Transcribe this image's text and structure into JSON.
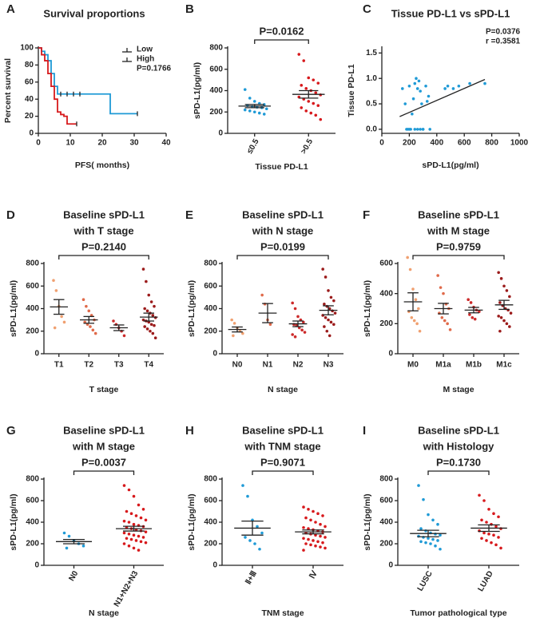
{
  "chart_data": [
    {
      "type": "survival",
      "panel": "A",
      "title": [
        "Survival proportions"
      ],
      "xlabel": "PFS( months)",
      "ylabel": "Percent survival",
      "annotation": "P=0.1766",
      "legend": "upper right",
      "xlim": [
        0,
        40
      ],
      "xticks": [
        0,
        10,
        20,
        30,
        40
      ],
      "ylim": [
        0,
        100
      ],
      "yticks": [
        0,
        20,
        40,
        60,
        80,
        100
      ],
      "series": [
        {
          "name": "Low",
          "color": "#1f9ad6",
          "x": [
            0,
            1,
            2,
            3,
            4,
            5,
            6,
            22.5,
            31
          ],
          "y": [
            100,
            96,
            92,
            85,
            70,
            55,
            46,
            23,
            23
          ],
          "censor_x": [
            7,
            9,
            11,
            13,
            31
          ],
          "censor_y": [
            46,
            46,
            46,
            46,
            23
          ]
        },
        {
          "name": "High",
          "color": "#d7191c",
          "x": [
            0,
            1,
            2,
            3,
            4,
            5,
            6,
            7,
            8,
            9,
            12
          ],
          "y": [
            100,
            92,
            85,
            70,
            55,
            40,
            25,
            22,
            20,
            11,
            11
          ],
          "censor_x": [
            12
          ],
          "censor_y": [
            11
          ]
        }
      ]
    },
    {
      "type": "dot",
      "panel": "B",
      "title": [],
      "pvalue": "P=0.0162",
      "xlabel": "Tissue PD-L1",
      "ylabel": "sPD-L1(pg/ml)",
      "ylim": [
        0,
        800
      ],
      "yticks": [
        0,
        200,
        400,
        600,
        800
      ],
      "groups": [
        {
          "name": "≤0.5",
          "color": "#1f9ad6",
          "values": [
            410,
            330,
            300,
            280,
            270,
            260,
            250,
            245,
            240,
            230,
            220,
            210,
            200,
            190,
            180
          ],
          "mean": 255,
          "sem": 15
        },
        {
          "name": ">0.5",
          "color": "#d7191c",
          "values": [
            740,
            680,
            520,
            500,
            470,
            450,
            420,
            400,
            380,
            360,
            340,
            320,
            300,
            280,
            260,
            240,
            210,
            190,
            170,
            130
          ],
          "mean": 365,
          "sem": 35
        }
      ]
    },
    {
      "type": "scatter",
      "panel": "C",
      "title": [
        "Tissue PD-L1 vs sPD-L1"
      ],
      "xlabel": "sPD-L1(pg/ml)",
      "ylabel": "Tissue PD-L1",
      "annotations": [
        "P=0.0376",
        "r =0.3581"
      ],
      "color": "#1f9ad6",
      "xlim": [
        0,
        1000
      ],
      "xticks": [
        0,
        200,
        400,
        600,
        800,
        1000
      ],
      "ylim": [
        -0.08,
        1.6
      ],
      "yticks": [
        {
          "value": 0,
          "label": "0.0"
        },
        0.5,
        {
          "value": 1,
          "label": "1.0"
        },
        1.5
      ],
      "x": [
        150,
        170,
        190,
        200,
        210,
        220,
        230,
        240,
        250,
        260,
        270,
        280,
        290,
        300,
        320,
        340,
        460,
        480,
        520,
        560,
        640,
        750,
        180,
        240,
        260,
        280,
        300,
        330,
        200,
        350
      ],
      "y": [
        0.8,
        0.5,
        0,
        0.85,
        0,
        0.3,
        0.6,
        0.9,
        1,
        0,
        0.95,
        0.75,
        0.5,
        0,
        0.85,
        0.65,
        0.8,
        0.85,
        0.8,
        0.85,
        0.9,
        0.9,
        0,
        0,
        0.8,
        0,
        0,
        0.55,
        0,
        0
      ],
      "fit": {
        "x": [
          130,
          750
        ],
        "y": [
          0.25,
          0.98
        ]
      }
    },
    {
      "type": "dot",
      "panel": "D",
      "title": [
        "Baseline sPD-L1",
        "with T stage"
      ],
      "pvalue": "P=0.2140",
      "xlabel": "T stage",
      "ylabel": "sPD-L1(pg/ml)",
      "ylim": [
        0,
        800
      ],
      "yticks": [
        0,
        200,
        400,
        600,
        800
      ],
      "groups": [
        {
          "name": "T1",
          "color": "#f0a070",
          "values": [
            650,
            560,
            420,
            330,
            280,
            230
          ],
          "mean": 415,
          "sem": 65
        },
        {
          "name": "T2",
          "color": "#e06a4a",
          "values": [
            480,
            420,
            380,
            340,
            300,
            280,
            260,
            240,
            210,
            180
          ],
          "mean": 300,
          "sem": 30
        },
        {
          "name": "T3",
          "color": "#cc2a2a",
          "values": [
            290,
            260,
            230,
            200,
            160
          ],
          "mean": 230,
          "sem": 25
        },
        {
          "name": "T4",
          "color": "#9b1b1b",
          "values": [
            750,
            640,
            520,
            460,
            420,
            400,
            380,
            360,
            340,
            320,
            300,
            290,
            280,
            260,
            250,
            240,
            220,
            200,
            180,
            140
          ],
          "mean": 325,
          "sem": 35
        }
      ]
    },
    {
      "type": "dot",
      "panel": "E",
      "title": [
        "Baseline sPD-L1",
        "with N stage"
      ],
      "pvalue": "P=0.0199",
      "xlabel": "N stage",
      "ylabel": "sPD-L1(pg/ml)",
      "ylim": [
        0,
        800
      ],
      "yticks": [
        0,
        200,
        400,
        600,
        800
      ],
      "groups": [
        {
          "name": "N0",
          "color": "#f0a070",
          "values": [
            300,
            270,
            230,
            200,
            180,
            160
          ],
          "mean": 215,
          "sem": 22
        },
        {
          "name": "N1",
          "color": "#e06a4a",
          "values": [
            520,
            440,
            300,
            260
          ],
          "mean": 360,
          "sem": 85
        },
        {
          "name": "N2",
          "color": "#cc2a2a",
          "values": [
            450,
            400,
            330,
            300,
            280,
            260,
            250,
            230,
            210,
            190,
            170,
            150
          ],
          "mean": 265,
          "sem": 25
        },
        {
          "name": "N3",
          "color": "#9b1b1b",
          "values": [
            750,
            680,
            560,
            500,
            470,
            440,
            420,
            400,
            380,
            360,
            340,
            320,
            300,
            280,
            260,
            240,
            200,
            160
          ],
          "mean": 385,
          "sem": 40
        }
      ]
    },
    {
      "type": "dot",
      "panel": "F",
      "title": [
        "Baseline sPD-L1",
        "with M stage"
      ],
      "pvalue": "P=0.9759",
      "xlabel": "M stage",
      "ylabel": "sPD-L1(pg/ml)",
      "ylim": [
        0,
        600
      ],
      "yticks": [
        0,
        200,
        400,
        600
      ],
      "groups": [
        {
          "name": "M0",
          "color": "#f0a070",
          "values": [
            640,
            560,
            430,
            360,
            300,
            280,
            240,
            220,
            200,
            150
          ],
          "mean": 345,
          "sem": 60
        },
        {
          "name": "M1a",
          "color": "#e06a4a",
          "values": [
            520,
            440,
            400,
            330,
            300,
            270,
            240,
            220,
            200,
            160
          ],
          "mean": 300,
          "sem": 35
        },
        {
          "name": "M1b",
          "color": "#cc2a2a",
          "values": [
            360,
            340,
            310,
            290,
            280,
            260,
            240,
            230
          ],
          "mean": 290,
          "sem": 18
        },
        {
          "name": "M1c",
          "color": "#9b1b1b",
          "values": [
            540,
            500,
            450,
            420,
            380,
            340,
            320,
            300,
            290,
            270,
            250,
            240,
            220,
            200,
            180,
            150
          ],
          "mean": 325,
          "sem": 30
        }
      ]
    },
    {
      "type": "dot",
      "panel": "G",
      "title": [
        "Baseline sPD-L1",
        "with M stage"
      ],
      "pvalue": "P=0.0037",
      "xlabel": "N stage",
      "ylabel": "sPD-L1(pg/ml)",
      "ylim": [
        0,
        800
      ],
      "yticks": [
        0,
        200,
        400,
        600,
        800
      ],
      "groups": [
        {
          "name": "N0",
          "color": "#1f9ad6",
          "values": [
            300,
            270,
            230,
            200,
            180,
            160
          ],
          "mean": 220,
          "sem": 20
        },
        {
          "name": "N1+N2+N3",
          "color": "#d7191c",
          "values": [
            740,
            700,
            640,
            560,
            520,
            500,
            480,
            460,
            440,
            420,
            410,
            400,
            380,
            370,
            360,
            350,
            340,
            330,
            320,
            310,
            300,
            290,
            280,
            270,
            260,
            250,
            240,
            230,
            220,
            210,
            200,
            180,
            160,
            140
          ],
          "mean": 340,
          "sem": 22
        }
      ]
    },
    {
      "type": "dot",
      "panel": "H",
      "title": [
        "Baseline sPD-L1",
        "with TNM stage"
      ],
      "pvalue": "P=0.9071",
      "xlabel": "TNM stage",
      "ylabel": "sPD-L1(pg/ml)",
      "ylim": [
        0,
        800
      ],
      "yticks": [
        0,
        200,
        400,
        600,
        800
      ],
      "groups": [
        {
          "name": "Ⅱ+Ⅲ",
          "color": "#1f9ad6",
          "values": [
            740,
            640,
            420,
            360,
            300,
            260,
            230,
            200,
            150
          ],
          "mean": 345,
          "sem": 65
        },
        {
          "name": "Ⅳ",
          "color": "#d7191c",
          "values": [
            540,
            520,
            500,
            480,
            460,
            440,
            420,
            400,
            380,
            360,
            350,
            340,
            330,
            320,
            310,
            300,
            290,
            280,
            270,
            260,
            250,
            240,
            230,
            220,
            210,
            200,
            190,
            180,
            170,
            160,
            140
          ],
          "mean": 310,
          "sem": 18
        }
      ]
    },
    {
      "type": "dot",
      "panel": "I",
      "title": [
        "Baseline sPD-L1",
        "with Histology"
      ],
      "pvalue": "P=0.1730",
      "xlabel": "Tumor pathological type",
      "ylabel": "sPD-L1(pg/ml)",
      "ylim": [
        0,
        800
      ],
      "yticks": [
        0,
        200,
        400,
        600,
        800
      ],
      "groups": [
        {
          "name": "LUSC",
          "color": "#1f9ad6",
          "values": [
            740,
            610,
            470,
            420,
            380,
            340,
            320,
            300,
            290,
            280,
            270,
            260,
            250,
            240,
            230,
            220,
            210,
            200,
            180,
            150
          ],
          "mean": 295,
          "sem": 30
        },
        {
          "name": "LUAD",
          "color": "#d7191c",
          "values": [
            650,
            600,
            520,
            480,
            450,
            420,
            400,
            380,
            360,
            340,
            320,
            300,
            290,
            280,
            260,
            250,
            230,
            210,
            190,
            160
          ],
          "mean": 345,
          "sem": 30
        }
      ]
    }
  ]
}
